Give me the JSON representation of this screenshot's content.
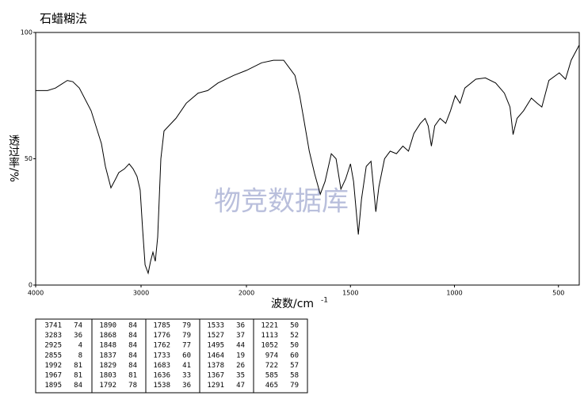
{
  "chart_data": {
    "type": "line",
    "title": "石蜡糊法",
    "y_label": "透过率/%",
    "x_label": "波数/cm",
    "x_label_sup": "-1",
    "watermark": "物竞数据库",
    "x": [
      4000,
      3887,
      3812,
      3752,
      3699,
      3647,
      3586,
      3474,
      3376,
      3338,
      3286,
      3241,
      3211,
      3158,
      3113,
      3075,
      3038,
      3008,
      2985,
      2962,
      2932,
      2910,
      2887,
      2865,
      2842,
      2812,
      2782,
      2737,
      2669,
      2571,
      2459,
      2368,
      2270,
      2120,
      2000,
      1927,
      1870,
      1821,
      1794,
      1767,
      1744,
      1725,
      1698,
      1672,
      1645,
      1622,
      1592,
      1569,
      1546,
      1523,
      1500,
      1485,
      1462,
      1447,
      1424,
      1401,
      1378,
      1363,
      1336,
      1309,
      1279,
      1248,
      1221,
      1195,
      1164,
      1141,
      1126,
      1111,
      1095,
      1069,
      1042,
      1019,
      996,
      973,
      950,
      897,
      851,
      802,
      760,
      733,
      718,
      699,
      668,
      630,
      603,
      580,
      546,
      496,
      466,
      439,
      400
    ],
    "values": [
      77,
      77,
      78,
      79.6,
      81,
      80.5,
      78,
      69,
      56,
      47,
      38.5,
      42,
      44.5,
      46,
      48,
      46,
      43,
      37.6,
      22,
      8,
      4.7,
      9.4,
      13,
      9.4,
      19,
      50,
      61,
      63,
      66,
      72,
      76,
      77,
      80,
      83,
      85,
      88,
      89,
      89,
      86,
      83,
      75,
      66,
      53,
      44,
      36,
      41,
      52,
      50,
      38,
      42,
      48,
      41,
      20,
      34,
      47,
      49,
      29,
      39,
      50,
      53,
      52,
      55,
      53,
      60,
      64,
      66,
      63,
      55,
      63,
      66,
      64,
      69,
      75,
      72,
      78,
      81.5,
      82,
      80,
      76,
      70.5,
      59.6,
      66,
      69,
      74,
      72,
      70.5,
      81,
      84,
      81.5,
      89,
      95
    ],
    "color": "#000000",
    "xlim": [
      4000,
      400
    ],
    "x_scale_change": 2000,
    "xticks": [
      4000,
      3000,
      2000,
      1500,
      1000,
      500
    ],
    "ylim": [
      0,
      100
    ],
    "yticks": [
      0,
      50,
      100
    ]
  },
  "table": {
    "columns": [
      [
        [
          3741,
          74
        ],
        [
          3283,
          36
        ],
        [
          2925,
          4
        ],
        [
          2855,
          8
        ],
        [
          1992,
          81
        ],
        [
          1967,
          81
        ],
        [
          1895,
          84
        ]
      ],
      [
        [
          1890,
          84
        ],
        [
          1868,
          84
        ],
        [
          1848,
          84
        ],
        [
          1837,
          84
        ],
        [
          1829,
          84
        ],
        [
          1803,
          81
        ],
        [
          1792,
          78
        ]
      ],
      [
        [
          1785,
          79
        ],
        [
          1776,
          79
        ],
        [
          1762,
          77
        ],
        [
          1733,
          60
        ],
        [
          1683,
          41
        ],
        [
          1636,
          33
        ],
        [
          1538,
          36
        ]
      ],
      [
        [
          1533,
          36
        ],
        [
          1527,
          37
        ],
        [
          1495,
          44
        ],
        [
          1464,
          19
        ],
        [
          1378,
          26
        ],
        [
          1367,
          35
        ],
        [
          1291,
          47
        ]
      ],
      [
        [
          1221,
          50
        ],
        [
          1113,
          52
        ],
        [
          1052,
          50
        ],
        [
          974,
          60
        ],
        [
          722,
          57
        ],
        [
          585,
          58
        ],
        [
          465,
          79
        ]
      ]
    ]
  }
}
